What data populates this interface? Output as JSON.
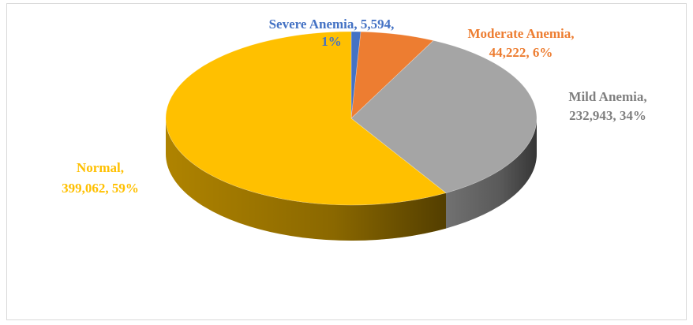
{
  "chart_data": {
    "type": "pie3d",
    "categories": [
      "Severe Anemia",
      "Moderate Anemia",
      "Mild Anemia",
      "Normal"
    ],
    "values": [
      5594,
      44222,
      232943,
      399062
    ],
    "percents": [
      1,
      6,
      34,
      59
    ],
    "value_labels": [
      [
        "Severe Anemia, 5,594,",
        "1%"
      ],
      [
        "Moderate Anemia,",
        "44,222, 6%"
      ],
      [
        "Mild Anemia,",
        "232,943, 34%"
      ],
      [
        "Normal,",
        "399,062, 59%"
      ]
    ],
    "colors": [
      "#4472c4",
      "#ed7d31",
      "#a5a5a5",
      "#ffc000"
    ],
    "label_colors": [
      "#4472c4",
      "#ed7d31",
      "#7f7f7f",
      "#ffc000"
    ]
  }
}
